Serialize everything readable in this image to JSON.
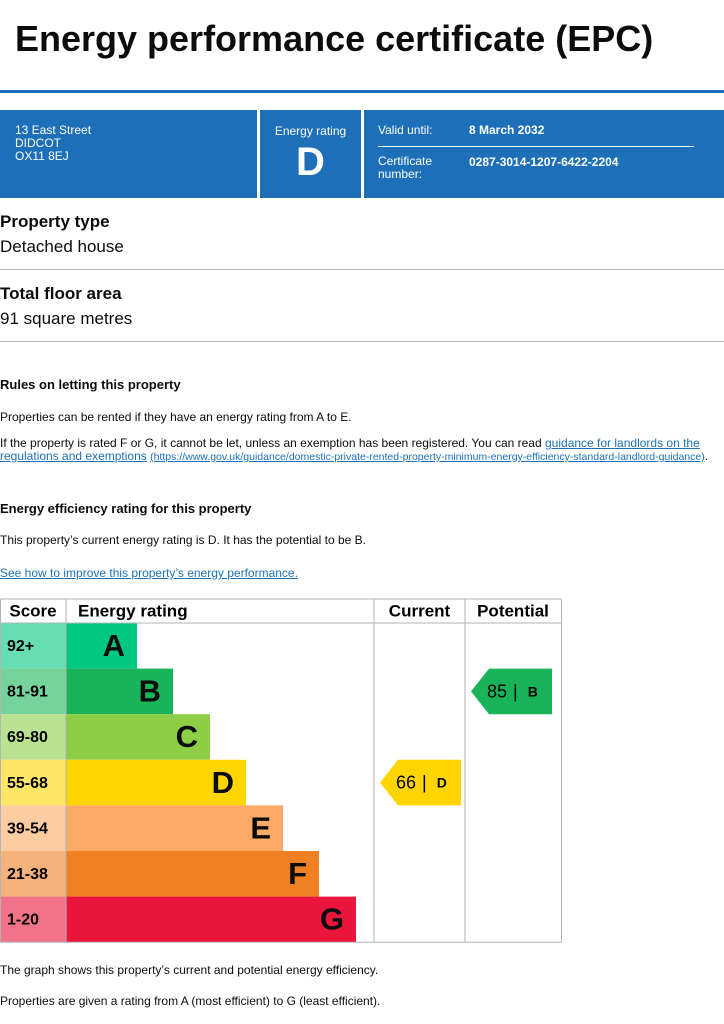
{
  "header": {
    "title": "Energy performance certificate (EPC)"
  },
  "summary": {
    "address": [
      "13 East Street",
      "DIDCOT",
      "OX11 8EJ"
    ],
    "rating_label": "Energy rating",
    "rating": "D",
    "valid_until_label": "Valid until:",
    "valid_until": "8 March 2032",
    "certificate_number_label": "Certificate number:",
    "certificate_number": "0287-3014-1207-6422-2204"
  },
  "property_type": {
    "label": "Property type",
    "value": "Detached house"
  },
  "floor_area": {
    "label": "Total floor area",
    "value": "91 square metres"
  },
  "rules": {
    "heading": "Rules on letting this property",
    "paragraph1": "Properties can be rented if they have an energy rating from A to E.",
    "paragraph2": "If the property is rated F or G, it cannot be let, unless an exemption has been registered. You can read ",
    "link": "guidance for landlords on the regulations and exemptions",
    "url": "(https://www.gov.uk/guidance/domestic-private-rented-property-minimum-energy-efficiency-standard-landlord-guidance)",
    "end": "."
  },
  "efficiency": {
    "heading": "Energy efficiency rating for this property",
    "summary": "This property’s current energy rating is D. It has the potential to be B.",
    "link": "See how to improve this property’s energy performance."
  },
  "rating_table": {
    "headers": [
      "Score",
      "Energy rating",
      "Current",
      "Potential"
    ],
    "bands": [
      {
        "score": "92+",
        "letter": "A",
        "color": "#00c781",
        "score_color": "#66ddb3"
      },
      {
        "score": "81-91",
        "letter": "B",
        "color": "#19b459",
        "score_color": "#75d29b"
      },
      {
        "score": "69-80",
        "letter": "C",
        "color": "#8dce46",
        "score_color": "#bbe290"
      },
      {
        "score": "55-68",
        "letter": "D",
        "color": "#ffd500",
        "score_color": "#ffe666"
      },
      {
        "score": "39-54",
        "letter": "E",
        "color": "#fcaa65",
        "score_color": "#fdcca3"
      },
      {
        "score": "21-38",
        "letter": "F",
        "color": "#ef8023",
        "score_color": "#f5b37b"
      },
      {
        "score": "1-20",
        "letter": "G",
        "color": "#e9153b",
        "score_color": "#f27389"
      }
    ],
    "separator": "|",
    "current": {
      "value": 66,
      "letter": "D"
    },
    "potential": {
      "value": 85,
      "letter": "B"
    }
  },
  "footer": [
    "The graph shows this property’s current and potential energy efficiency.",
    "Properties are given a rating from A (most efficient) to G (least efficient)."
  ]
}
